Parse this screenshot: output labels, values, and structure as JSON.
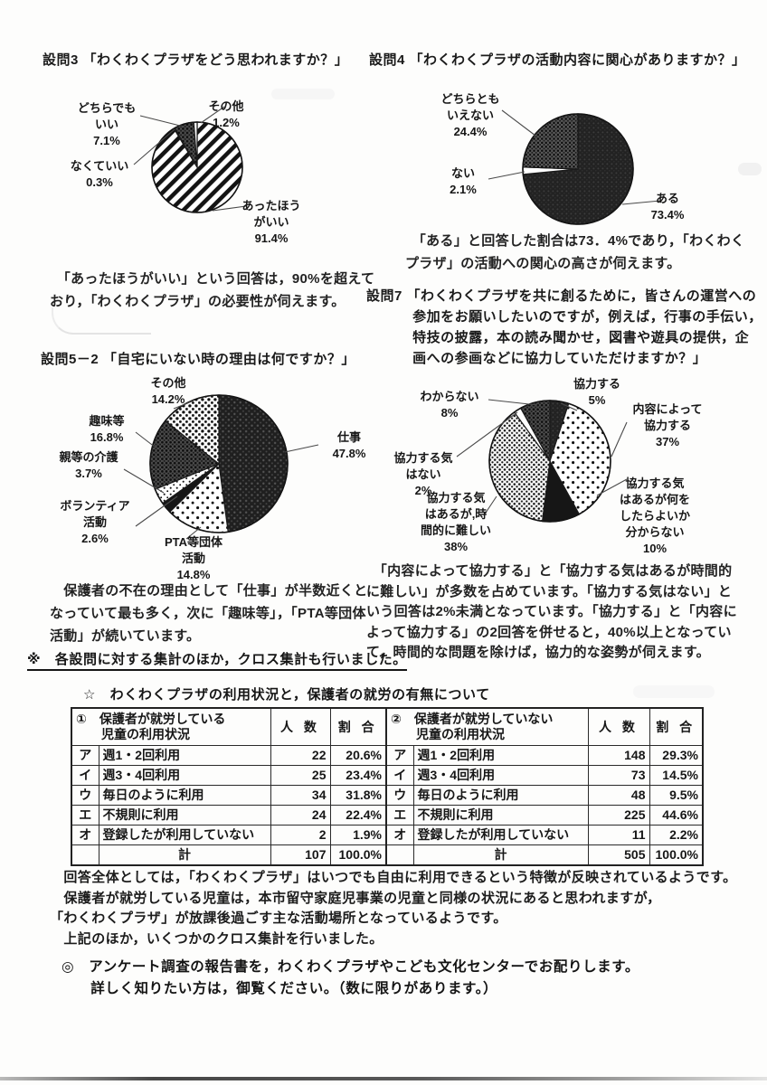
{
  "chart_data": [
    {
      "type": "pie",
      "title": "設問3 「わくわくプラザをどう思われますか？」",
      "caption": "　「あったほうがいい」という回答は，90%を超えて\nおり，「わくわくプラザ」の必要性が伺えます。",
      "slices": [
        {
          "label": "あったほうがいい",
          "value": 91.4,
          "pattern": "hatch",
          "display": "あったほう\nがいい\n91.4%"
        },
        {
          "label": "なくていい",
          "value": 0.3,
          "pattern": "white",
          "display": "なくていい\n0.3%"
        },
        {
          "label": "どちらでもいい",
          "value": 7.1,
          "pattern": "darkgrid",
          "display": "どちらでも\nいい\n7.1%"
        },
        {
          "label": "その他",
          "value": 1.2,
          "pattern": "white",
          "display": "その他\n1.2%"
        }
      ]
    },
    {
      "type": "pie",
      "title": "設問4 「わくわくプラザの活動内容に関心がありますか？」",
      "caption": "　「ある」と回答した割合は73．4%であり，「わくわく\nプラザ」の活動への関心の高さが伺えます。",
      "slices": [
        {
          "label": "ある",
          "value": 73.4,
          "pattern": "soliddark",
          "display": "ある\n73.4%"
        },
        {
          "label": "ない",
          "value": 2.1,
          "pattern": "white",
          "display": "ない\n2.1%"
        },
        {
          "label": "どちらともいえない",
          "value": 24.4,
          "pattern": "darkdots",
          "display": "どちらとも\nいえない\n24.4%"
        }
      ]
    },
    {
      "type": "pie",
      "title": "設問5－2 「自宅にいない時の理由は何ですか？」",
      "caption": "　保護者の不在の理由として「仕事」が半数近くと\nなっていて最も多く，次に「趣味等」，「PTA等団体\n活動」が続いています。",
      "slices": [
        {
          "label": "仕事",
          "value": 47.8,
          "pattern": "blackdots",
          "display": "仕事\n47.8%"
        },
        {
          "label": "PTA等団体活動",
          "value": 14.8,
          "pattern": "dotsparse",
          "display": "PTA等団体\n活動\n14.8%"
        },
        {
          "label": "ボランティア活動",
          "value": 2.6,
          "pattern": "black",
          "display": "ボランティア\n活動\n2.6%"
        },
        {
          "label": "親等の介護",
          "value": 3.7,
          "pattern": "dotfine",
          "display": "親等の介護\n3.7%"
        },
        {
          "label": "趣味等",
          "value": 16.8,
          "pattern": "darkgrid",
          "display": "趣味等\n16.8%"
        },
        {
          "label": "その他",
          "value": 14.2,
          "pattern": "dotmid",
          "display": "その他\n14.2%"
        }
      ]
    },
    {
      "type": "pie",
      "title": "設問7 「わくわくプラザを共に創るために，皆さんの運営への\n　　　 参加をお願いしたいのですが，例えば，行事の手伝い，\n　　　 特技の披露，本の読み聞かせ，図書や遊具の提供，企\n　　　 画への参画などに協力していただけますか？」",
      "caption": "　「内容によって協力する」と「協力する気はあるが時間的\nに難しい」が多数を占めています。「協力する気はない」と\nいう回答は2%未満となっています。「協力する」と「内容に\nよって協力する」の2回答を併せると，40%以上となってい\nて，時間的な問題を除けば，協力的な姿勢が伺えます。",
      "slices": [
        {
          "label": "協力する",
          "value": 5,
          "pattern": "soliddark",
          "display": "協力する\n5%"
        },
        {
          "label": "内容によって協力する",
          "value": 37,
          "pattern": "dotsparse",
          "display": "内容によって\n協力する\n37%"
        },
        {
          "label": "協力する気はあるが何をしたらよいか分からない",
          "value": 10,
          "pattern": "black",
          "display": "協力する気\nはあるが何を\nしたらよいか\n分からない\n10%"
        },
        {
          "label": "協力する気はあるが，時間的に難しい",
          "value": 38,
          "pattern": "dotdense",
          "display": "協力する気\nはあるが,時\n間的に難しい\n38%"
        },
        {
          "label": "協力する気はない",
          "value": 2,
          "pattern": "white",
          "display": "協力する気\nはない\n2%"
        },
        {
          "label": "わからない",
          "value": 8,
          "pattern": "darkgrid",
          "display": "わからない\n8%"
        }
      ]
    }
  ],
  "section_notes": {
    "cross_note": "※　各設問に対する集計のほか，クロス集計も行いました。",
    "star_heading": "☆　わくわくプラザの利用状況と，保護者の就労の有無について"
  },
  "tables": [
    {
      "title": "①　保護者が就労している\n　　児童の利用状況",
      "count_header": "人 数",
      "pct_header": "割 合",
      "rows": [
        {
          "key": "ア",
          "label": "週1・2回利用",
          "count": "22",
          "pct": "20.6%"
        },
        {
          "key": "イ",
          "label": "週3・4回利用",
          "count": "25",
          "pct": "23.4%"
        },
        {
          "key": "ウ",
          "label": "毎日のように利用",
          "count": "34",
          "pct": "31.8%"
        },
        {
          "key": "エ",
          "label": "不規則に利用",
          "count": "24",
          "pct": "22.4%"
        },
        {
          "key": "オ",
          "label": "登録したが利用していない",
          "count": "2",
          "pct": "1.9%"
        },
        {
          "key": "",
          "label": "計",
          "count": "107",
          "pct": "100.0%",
          "total": true
        }
      ]
    },
    {
      "title": "②　保護者が就労していない\n　　児童の利用状況",
      "count_header": "人 数",
      "pct_header": "割 合",
      "rows": [
        {
          "key": "ア",
          "label": "週1・2回利用",
          "count": "148",
          "pct": "29.3%"
        },
        {
          "key": "イ",
          "label": "週3・4回利用",
          "count": "73",
          "pct": "14.5%"
        },
        {
          "key": "ウ",
          "label": "毎日のように利用",
          "count": "48",
          "pct": "9.5%"
        },
        {
          "key": "エ",
          "label": "不規則に利用",
          "count": "225",
          "pct": "44.6%"
        },
        {
          "key": "オ",
          "label": "登録したが利用していない",
          "count": "11",
          "pct": "2.2%"
        },
        {
          "key": "",
          "label": "計",
          "count": "505",
          "pct": "100.0%",
          "total": true
        }
      ]
    }
  ],
  "summary_text": "　回答全体としては，「わくわくプラザ」はいつでも自由に利用できるという特徴が反映されているようです。\n　保護者が就労している児童は，本市留守家庭児事業の児童と同様の状況にあると思われますが，\n「わくわくプラザ」が放課後過ごす主な活動場所となっているようです。\n　上記のほか，いくつかのクロス集計を行いました。",
  "handout_note": "◎　アンケート調査の報告書を，わくわくプラザやこども文化センターでお配りします。\n　　詳しく知りたい方は，御覧ください。（数に限りがあります。）"
}
